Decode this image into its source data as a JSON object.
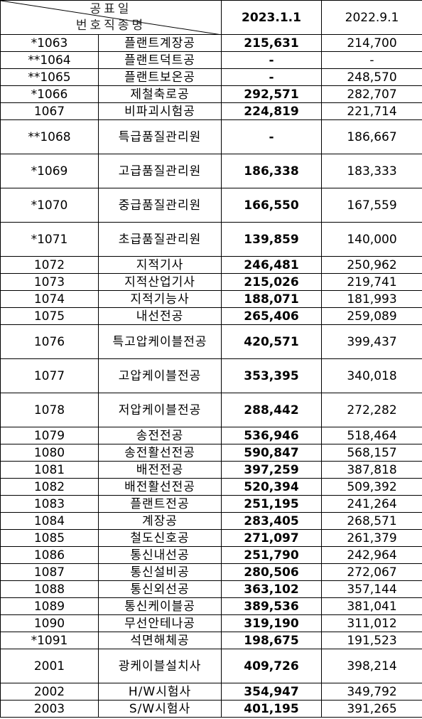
{
  "header": {
    "corner_top": "공표일",
    "corner_bottom": "번호직종명",
    "col_current": "2023.1.1",
    "col_previous": "2022.9.1"
  },
  "rows": [
    {
      "code": "*1063",
      "name": "플랜트계장공",
      "cur": "215,631",
      "prev": "214,700"
    },
    {
      "code": "**1064",
      "name": "플랜트덕트공",
      "cur": "-",
      "prev": "-"
    },
    {
      "code": "**1065",
      "name": "플랜트보온공",
      "cur": "-",
      "prev": "248,570"
    },
    {
      "code": "*1066",
      "name": "제철축로공",
      "cur": "292,571",
      "prev": "282,707"
    },
    {
      "code": "1067",
      "name": "비파괴시험공",
      "cur": "224,819",
      "prev": "221,714"
    },
    {
      "code": "**1068",
      "name": "특급품질관리원",
      "cur": "-",
      "prev": "186,667"
    },
    {
      "code": "*1069",
      "name": "고급품질관리원",
      "cur": "186,338",
      "prev": "183,333"
    },
    {
      "code": "*1070",
      "name": "중급품질관리원",
      "cur": "166,550",
      "prev": "167,559"
    },
    {
      "code": "*1071",
      "name": "초급품질관리원",
      "cur": "139,859",
      "prev": "140,000"
    },
    {
      "code": "1072",
      "name": "지적기사",
      "cur": "246,481",
      "prev": "250,962"
    },
    {
      "code": "1073",
      "name": "지적산업기사",
      "cur": "215,026",
      "prev": "219,741"
    },
    {
      "code": "1074",
      "name": "지적기능사",
      "cur": "188,071",
      "prev": "181,993"
    },
    {
      "code": "1075",
      "name": "내선전공",
      "cur": "265,406",
      "prev": "259,089"
    },
    {
      "code": "1076",
      "name": "특고압케이블전공",
      "cur": "420,571",
      "prev": "399,437"
    },
    {
      "code": "1077",
      "name": "고압케이블전공",
      "cur": "353,395",
      "prev": "340,018"
    },
    {
      "code": "1078",
      "name": "저압케이블전공",
      "cur": "288,442",
      "prev": "272,282"
    },
    {
      "code": "1079",
      "name": "송전전공",
      "cur": "536,946",
      "prev": "518,464"
    },
    {
      "code": "1080",
      "name": "송전활선전공",
      "cur": "590,847",
      "prev": "568,157"
    },
    {
      "code": "1081",
      "name": "배전전공",
      "cur": "397,259",
      "prev": "387,818"
    },
    {
      "code": "1082",
      "name": "배전활선전공",
      "cur": "520,394",
      "prev": "509,392"
    },
    {
      "code": "1083",
      "name": "플랜트전공",
      "cur": "251,195",
      "prev": "241,264"
    },
    {
      "code": "1084",
      "name": "계장공",
      "cur": "283,405",
      "prev": "268,571"
    },
    {
      "code": "1085",
      "name": "철도신호공",
      "cur": "271,097",
      "prev": "261,379"
    },
    {
      "code": "1086",
      "name": "통신내선공",
      "cur": "251,790",
      "prev": "242,964"
    },
    {
      "code": "1087",
      "name": "통신설비공",
      "cur": "280,506",
      "prev": "272,067"
    },
    {
      "code": "1088",
      "name": "통신외선공",
      "cur": "363,102",
      "prev": "357,144"
    },
    {
      "code": "1089",
      "name": "통신케이블공",
      "cur": "389,536",
      "prev": "381,041"
    },
    {
      "code": "1090",
      "name": "무선안테나공",
      "cur": "319,190",
      "prev": "311,012"
    },
    {
      "code": "*1091",
      "name": "석면해체공",
      "cur": "198,675",
      "prev": "191,523"
    },
    {
      "code": "2001",
      "name": "광케이블설치사",
      "cur": "409,726",
      "prev": "398,214"
    },
    {
      "code": "2002",
      "name": "H/W시험사",
      "cur": "354,947",
      "prev": "349,792"
    },
    {
      "code": "2003",
      "name": "S/W시험사",
      "cur": "401,195",
      "prev": "391,265"
    }
  ]
}
